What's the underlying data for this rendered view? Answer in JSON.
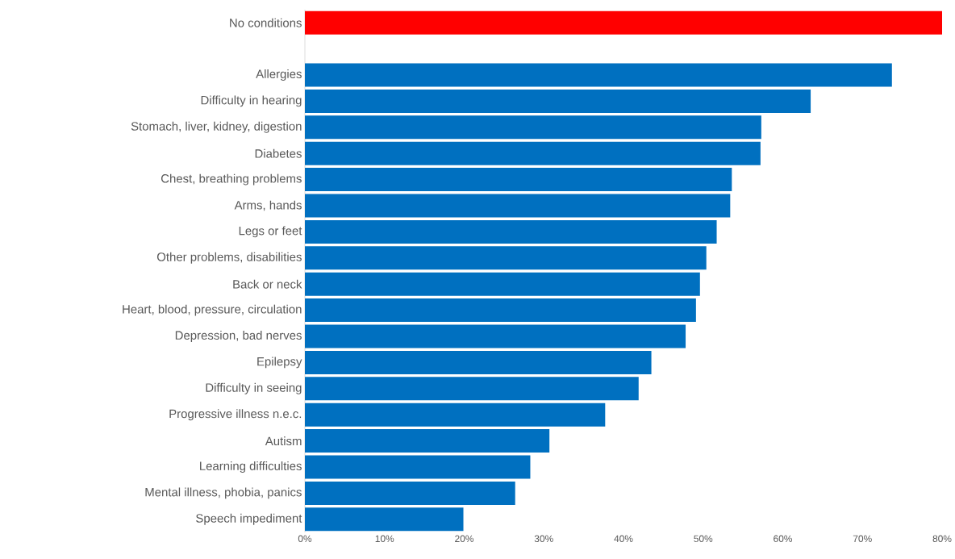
{
  "chart_data": {
    "type": "bar",
    "orientation": "horizontal",
    "categories": [
      "No conditions",
      null,
      "Allergies",
      "Difficulty in hearing",
      "Stomach, liver, kidney, digestion",
      "Diabetes",
      "Chest, breathing problems",
      "Arms, hands",
      "Legs or feet",
      "Other problems, disabilities",
      "Back or neck",
      "Heart, blood, pressure, circulation",
      "Depression, bad nerves",
      "Epilepsy",
      "Difficulty in seeing",
      "Progressive illness n.e.c.",
      "Autism",
      "Learning difficulties",
      "Mental illness, phobia, panics",
      "Speech impediment"
    ],
    "values": [
      80,
      null,
      73.7,
      63.5,
      57.3,
      57.2,
      53.6,
      53.4,
      51.7,
      50.4,
      49.6,
      49.1,
      47.8,
      43.5,
      41.9,
      37.7,
      30.7,
      28.3,
      26.4,
      19.9
    ],
    "colors": [
      "#ff0000",
      null,
      "#0070c0",
      "#0070c0",
      "#0070c0",
      "#0070c0",
      "#0070c0",
      "#0070c0",
      "#0070c0",
      "#0070c0",
      "#0070c0",
      "#0070c0",
      "#0070c0",
      "#0070c0",
      "#0070c0",
      "#0070c0",
      "#0070c0",
      "#0070c0",
      "#0070c0",
      "#0070c0"
    ],
    "xlim": [
      0,
      80
    ],
    "xticks": [
      {
        "value": 0,
        "label": "0%"
      },
      {
        "value": 10,
        "label": "10%"
      },
      {
        "value": 20,
        "label": "20%"
      },
      {
        "value": 30,
        "label": "30%"
      },
      {
        "value": 40,
        "label": "40%"
      },
      {
        "value": 50,
        "label": "50%"
      },
      {
        "value": 60,
        "label": "60%"
      },
      {
        "value": 70,
        "label": "70%"
      },
      {
        "value": 80,
        "label": "80%"
      }
    ]
  }
}
